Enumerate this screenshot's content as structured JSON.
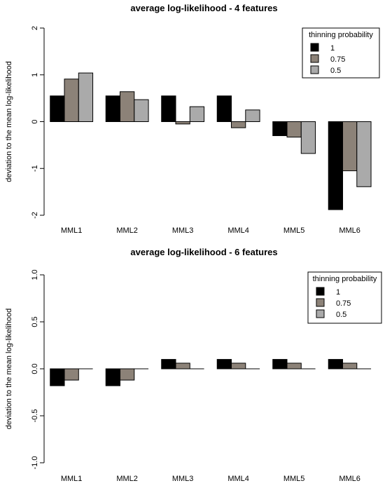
{
  "chart_data": [
    {
      "type": "bar",
      "title": "average log-likelihood - 4 features",
      "xlabel": "",
      "ylabel": "deviation to the mean log-likelihood",
      "ylim": [
        -2,
        2
      ],
      "yticks": [
        -2,
        -1,
        0,
        1,
        2
      ],
      "ytick_labels": [
        "-2",
        "-1",
        "0",
        "1",
        "2"
      ],
      "categories": [
        "MML1",
        "MML2",
        "MML3",
        "MML4",
        "MML5",
        "MML6"
      ],
      "legend": {
        "title": "thinning probability",
        "position": "top-right"
      },
      "series": [
        {
          "name": "1",
          "color": "#000000",
          "values": [
            0.55,
            0.55,
            0.55,
            0.55,
            -0.3,
            -1.88
          ]
        },
        {
          "name": "0.75",
          "color": "#8c8278",
          "values": [
            0.91,
            0.64,
            -0.05,
            -0.13,
            -0.33,
            -1.05
          ]
        },
        {
          "name": "0.5",
          "color": "#aaaaaa",
          "values": [
            1.04,
            0.47,
            0.32,
            0.25,
            -0.68,
            -1.39
          ]
        }
      ]
    },
    {
      "type": "bar",
      "title": "average log-likelihood - 6 features",
      "xlabel": "",
      "ylabel": "deviation to the mean log-likelihood",
      "ylim": [
        -1,
        1
      ],
      "yticks": [
        -1,
        -0.5,
        0,
        0.5,
        1
      ],
      "ytick_labels": [
        "-1.0",
        "-0.5",
        "0.0",
        "0.5",
        "1.0"
      ],
      "categories": [
        "MML1",
        "MML2",
        "MML3",
        "MML4",
        "MML5",
        "MML6"
      ],
      "legend": {
        "title": "thinning probability",
        "position": "top-right"
      },
      "series": [
        {
          "name": "1",
          "color": "#000000",
          "values": [
            -0.18,
            -0.18,
            0.1,
            0.1,
            0.1,
            0.1
          ]
        },
        {
          "name": "0.75",
          "color": "#8c8278",
          "values": [
            -0.12,
            -0.12,
            0.06,
            0.06,
            0.06,
            0.06
          ]
        },
        {
          "name": "0.5",
          "color": "#aaaaaa",
          "values": [
            0.0,
            0.0,
            0.0,
            0.0,
            0.0,
            0.0
          ]
        }
      ]
    }
  ]
}
